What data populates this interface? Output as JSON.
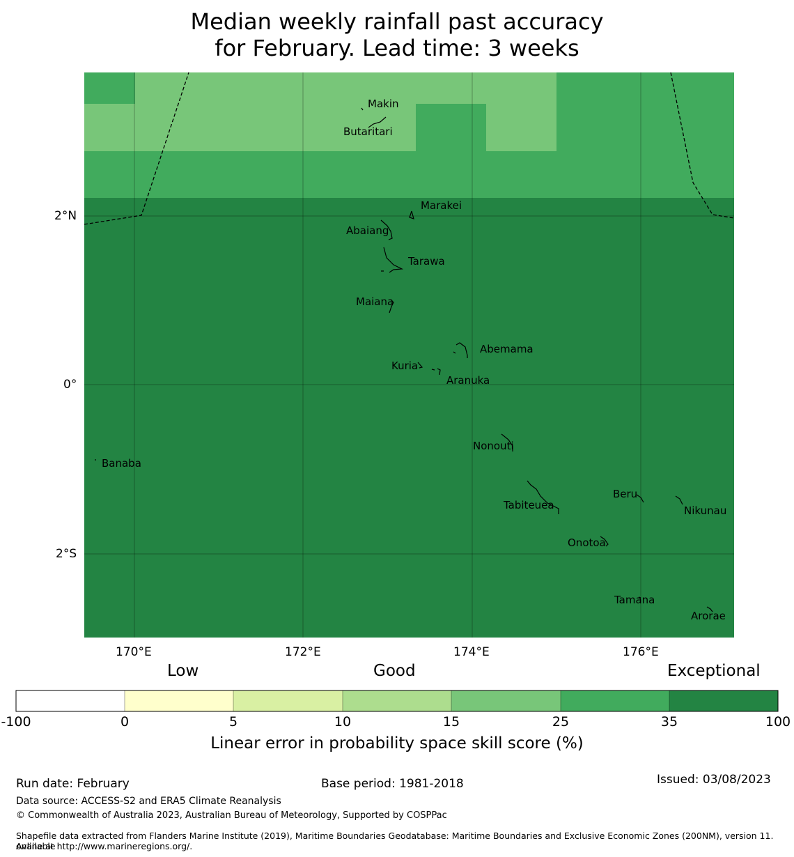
{
  "title": {
    "line1": "Median weekly rainfall past accuracy",
    "line2": "for February. Lead time: 3 weeks"
  },
  "map": {
    "lon_ticks": [
      "170°E",
      "172°E",
      "174°E",
      "176°E"
    ],
    "lat_ticks": [
      "2°N",
      "0°",
      "2°S"
    ],
    "islands": [
      "Makin",
      "Butaritari",
      "Marakei",
      "Abaiang",
      "Tarawa",
      "Maiana",
      "Abemama",
      "Kuria",
      "Aranuka",
      "Nonouti",
      "Banaba",
      "Beru",
      "Tabiteuea",
      "Nikunau",
      "Onotoa",
      "Tamana",
      "Arorae"
    ]
  },
  "colorbar": {
    "categories": {
      "low": "Low",
      "good": "Good",
      "exceptional": "Exceptional"
    },
    "ticks": [
      "-100",
      "0",
      "5",
      "10",
      "15",
      "25",
      "35",
      "100"
    ],
    "colors": [
      "#ffffff",
      "#ffffcc",
      "#d9f0a3",
      "#addd8e",
      "#78c679",
      "#41ab5d",
      "#238443"
    ],
    "label": "Linear error in probability space skill score (%)"
  },
  "footer": {
    "run_date": "Run date: February",
    "base_period": "Base period: 1981-2018",
    "issued": "Issued: 03/08/2023",
    "data_source": "Data source: ACCESS-S2 and ERA5 Climate Reanalysis",
    "copyright": "© Commonwealth of Australia 2023, Australian Bureau of Meteorology, Supported by COSPPac",
    "shapefile_line1": "Shapefile data extracted from Flanders Marine Institute (2019), Maritime Boundaries Geodatabase: Maritime Boundaries and Exclusive Economic Zones (200NM), version 11. Available",
    "shapefile_line2": "online at http://www.marineregions.org/."
  }
}
